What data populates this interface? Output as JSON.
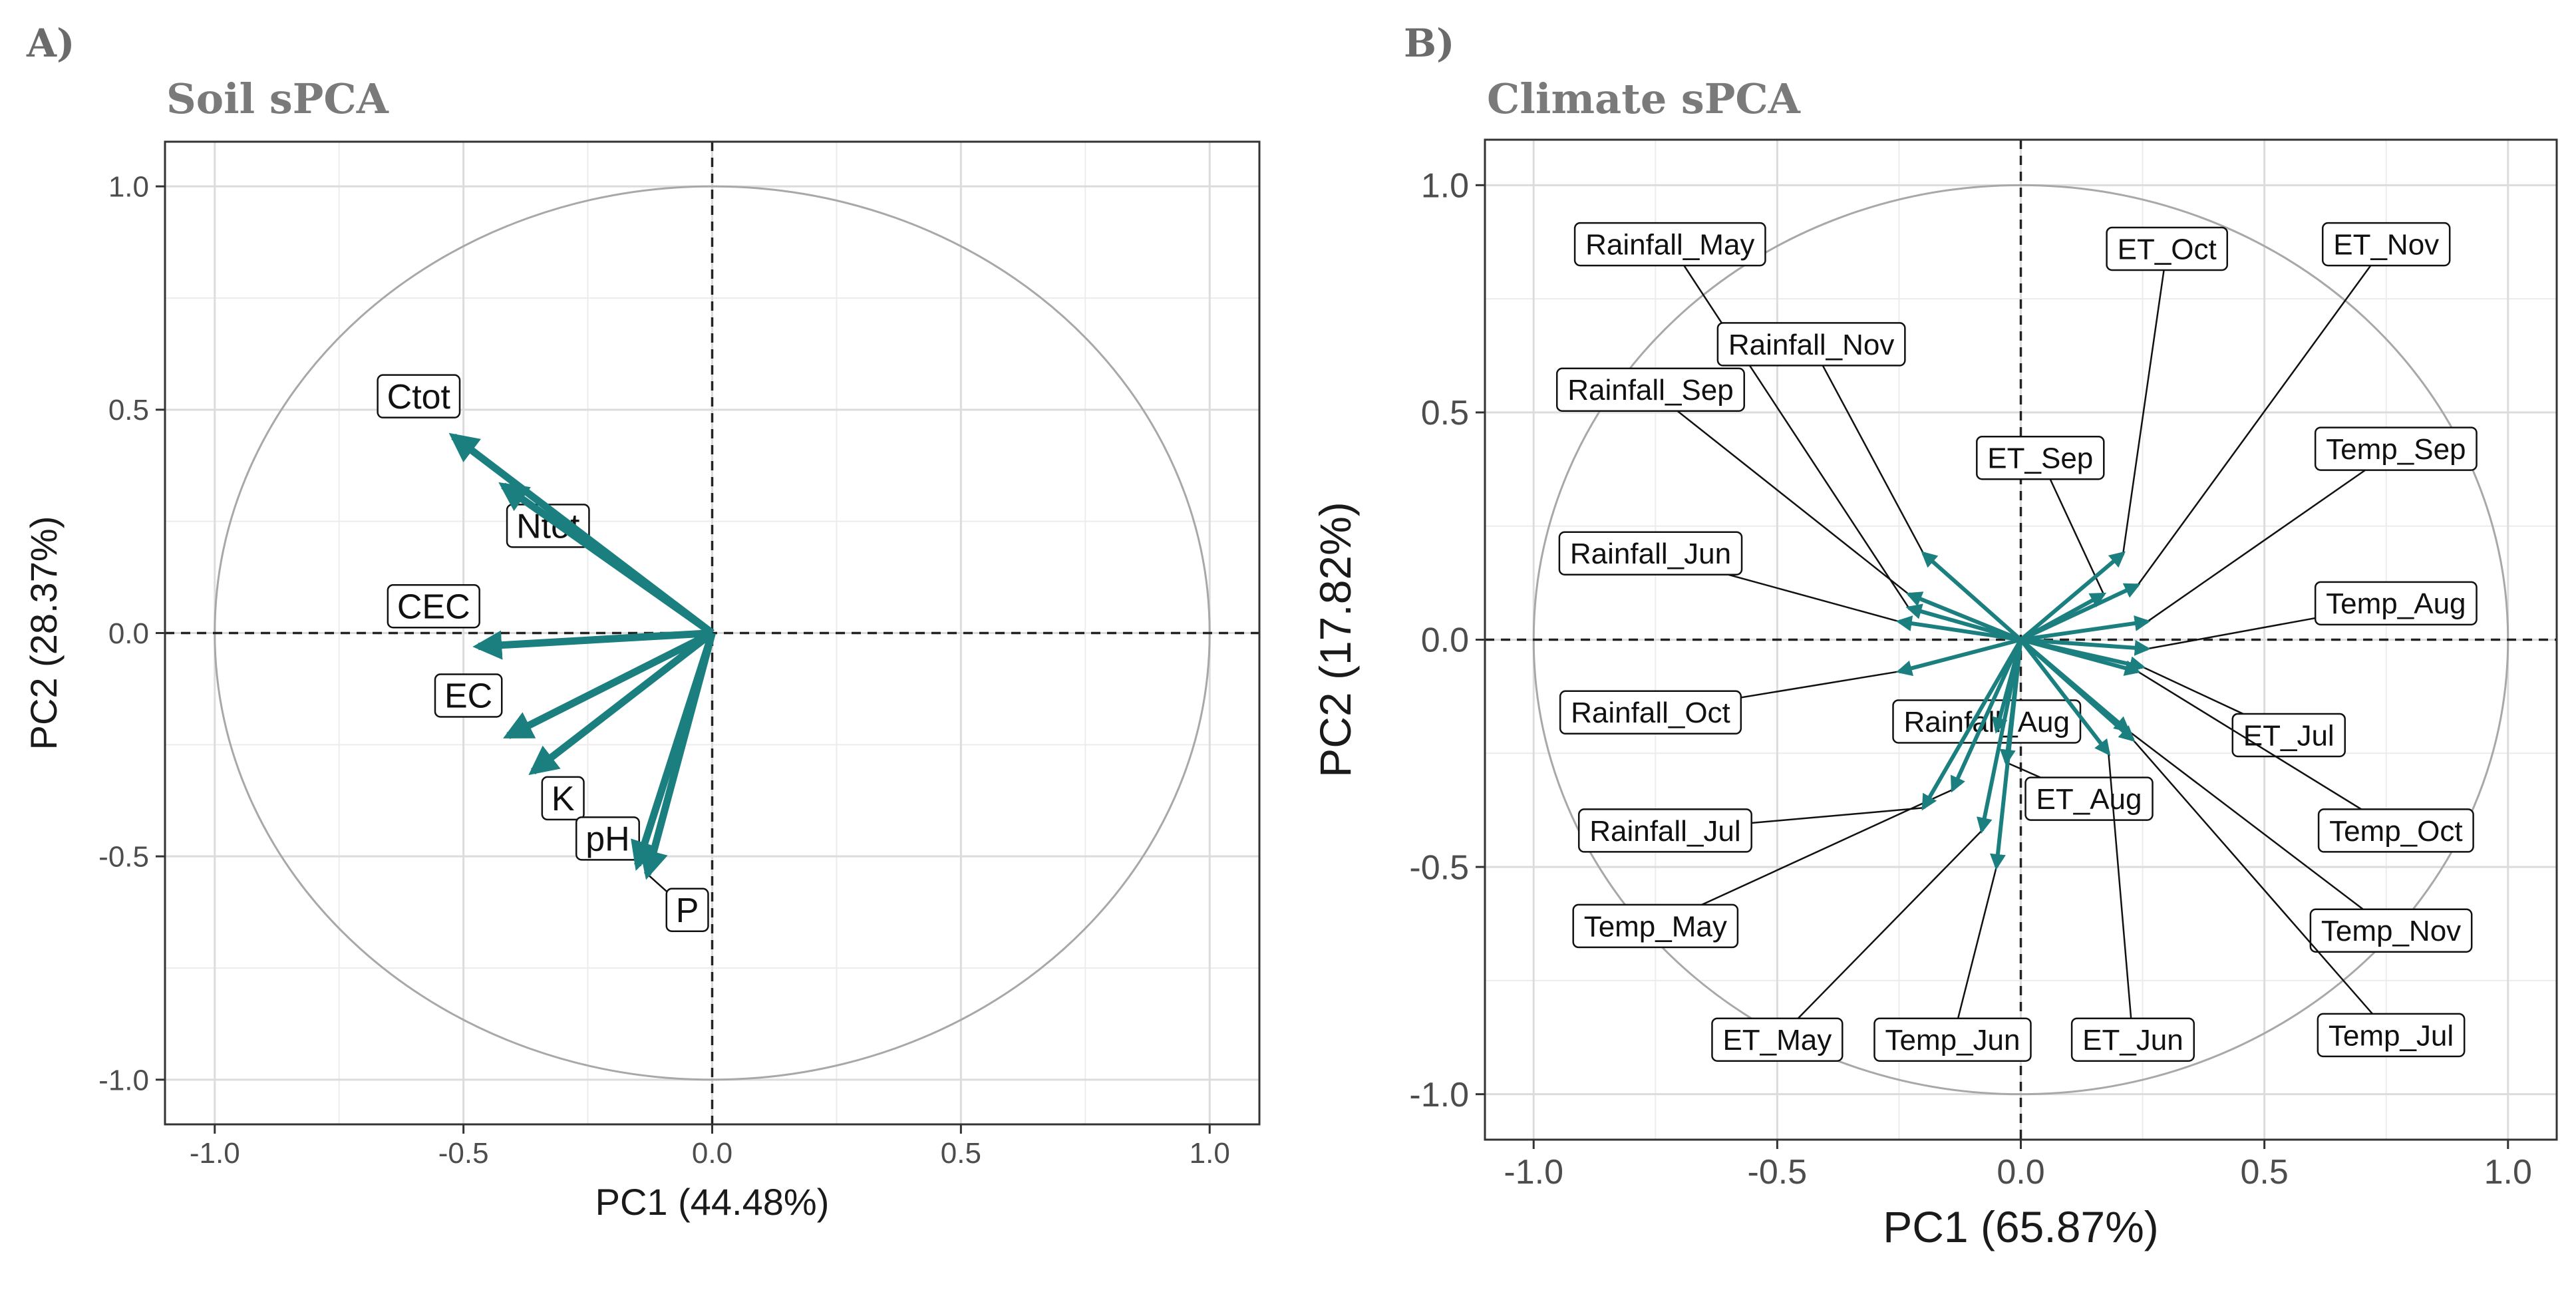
{
  "panels": {
    "a": {
      "tag": "A)",
      "title": "Soil sPCA"
    },
    "b": {
      "tag": "B)",
      "title": "Climate sPCA"
    }
  },
  "chart_data": [
    {
      "type": "scatter",
      "title": "Soil sPCA",
      "xlabel": "PC1 (44.48%)",
      "ylabel": "PC2 (28.37%)",
      "xlim": [
        -1.1,
        1.1
      ],
      "ylim": [
        -1.1,
        1.1
      ],
      "xticks": [
        "-1.0",
        "-0.5",
        "0.0",
        "0.5",
        "1.0"
      ],
      "yticks": [
        "-1.0",
        "-0.5",
        "0.0",
        "0.5",
        "1.0"
      ],
      "grid": true,
      "unit_circle": true,
      "arrow_color": "#1b7f7f",
      "variables": [
        {
          "name": "Ctot",
          "x": -0.52,
          "y": 0.44
        },
        {
          "name": "Ntot",
          "x": -0.42,
          "y": 0.33
        },
        {
          "name": "CEC",
          "x": -0.47,
          "y": -0.03
        },
        {
          "name": "EC",
          "x": -0.41,
          "y": -0.23
        },
        {
          "name": "K",
          "x": -0.36,
          "y": -0.31
        },
        {
          "name": "pH",
          "x": -0.15,
          "y": -0.52
        },
        {
          "name": "P",
          "x": -0.13,
          "y": -0.54
        }
      ]
    },
    {
      "type": "scatter",
      "title": "Climate sPCA",
      "xlabel": "PC1 (65.87%)",
      "ylabel": "PC2 (17.82%)",
      "xlim": [
        -1.1,
        1.1
      ],
      "ylim": [
        -1.1,
        1.1
      ],
      "xticks": [
        "-1.0",
        "-0.5",
        "0.0",
        "0.5",
        "1.0"
      ],
      "yticks": [
        "-1.0",
        "-0.5",
        "0.0",
        "0.5",
        "1.0"
      ],
      "grid": true,
      "unit_circle": true,
      "arrow_color": "#1b7f7f",
      "variables": [
        {
          "name": "Rainfall_May",
          "x": -0.23,
          "y": 0.07
        },
        {
          "name": "Rainfall_Nov",
          "x": -0.2,
          "y": 0.19
        },
        {
          "name": "Rainfall_Sep",
          "x": -0.23,
          "y": 0.1
        },
        {
          "name": "Rainfall_Jun",
          "x": -0.25,
          "y": 0.04
        },
        {
          "name": "Rainfall_Oct",
          "x": -0.25,
          "y": -0.07
        },
        {
          "name": "Rainfall_Aug",
          "x": -0.05,
          "y": -0.2
        },
        {
          "name": "Rainfall_Jul",
          "x": -0.2,
          "y": -0.37
        },
        {
          "name": "ET_Oct",
          "x": 0.21,
          "y": 0.19
        },
        {
          "name": "ET_Nov",
          "x": 0.24,
          "y": 0.12
        },
        {
          "name": "ET_Sep",
          "x": 0.17,
          "y": 0.1
        },
        {
          "name": "ET_Jul",
          "x": 0.25,
          "y": -0.06
        },
        {
          "name": "ET_Aug",
          "x": -0.03,
          "y": -0.27
        },
        {
          "name": "ET_May",
          "x": -0.08,
          "y": -0.42
        },
        {
          "name": "ET_Jun",
          "x": 0.18,
          "y": -0.25
        },
        {
          "name": "Temp_Sep",
          "x": 0.26,
          "y": 0.04
        },
        {
          "name": "Temp_Aug",
          "x": 0.26,
          "y": -0.02
        },
        {
          "name": "Temp_Oct",
          "x": 0.24,
          "y": -0.07
        },
        {
          "name": "Temp_Nov",
          "x": 0.22,
          "y": -0.2
        },
        {
          "name": "Temp_Jul",
          "x": 0.23,
          "y": -0.22
        },
        {
          "name": "Temp_May",
          "x": -0.14,
          "y": -0.33
        },
        {
          "name": "Temp_Jun",
          "x": -0.05,
          "y": -0.5
        }
      ]
    }
  ]
}
